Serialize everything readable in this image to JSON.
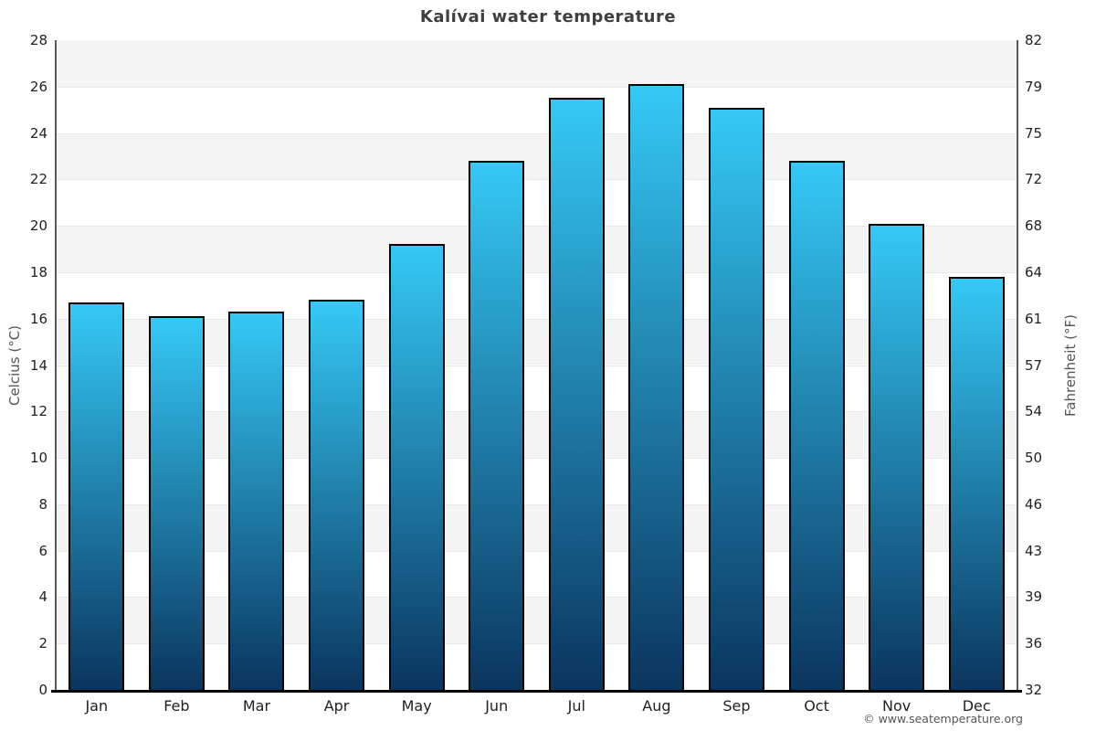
{
  "page": {
    "footer": "© www.seatemperature.org"
  },
  "chart_data": {
    "type": "bar",
    "title": "Kalívai water temperature",
    "categories": [
      "Jan",
      "Feb",
      "Mar",
      "Apr",
      "May",
      "Jun",
      "Jul",
      "Aug",
      "Sep",
      "Oct",
      "Nov",
      "Dec"
    ],
    "values": [
      16.7,
      16.1,
      16.3,
      16.8,
      19.2,
      22.8,
      25.5,
      26.1,
      25.1,
      22.8,
      20.1,
      17.8
    ],
    "unit": "°C",
    "ylabel_left": "Celcius (°C)",
    "ylabel_right": "Fahrenheit (°F)",
    "ylim": [
      0,
      28
    ],
    "yticks_celsius": [
      0,
      2,
      4,
      6,
      8,
      10,
      12,
      14,
      16,
      18,
      20,
      22,
      24,
      26,
      28
    ],
    "yticks_fahrenheit": [
      32,
      36,
      39,
      43,
      46,
      50,
      54,
      57,
      61,
      64,
      68,
      72,
      75,
      79,
      82
    ],
    "legend": "none",
    "grid": "alternating horizontal bands every 2°C",
    "colors": {
      "bar_gradient_top": "#35c9f6",
      "bar_gradient_bottom": "#0a355e",
      "bar_border": "#000000",
      "band_shade": "#f4f4f4",
      "band_light": "#ffffff",
      "gridline": "#e8e8e8",
      "axis_line": "#5a5a5a",
      "baseline": "#000000",
      "title_color": "#3f3f3f",
      "tick_color": "#222222",
      "axis_title_color": "#555555",
      "footer_color": "#555555"
    }
  }
}
